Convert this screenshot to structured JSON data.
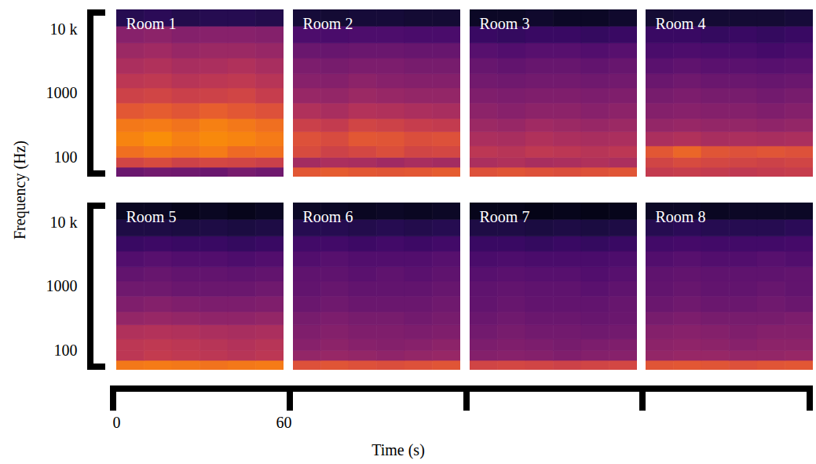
{
  "chart_data": {
    "type": "heatmap",
    "x_label": "Time (s)",
    "y_label": "Frequency (Hz)",
    "xlim": [
      0,
      60
    ],
    "xticks": [
      0,
      60
    ],
    "ylim": [
      50,
      20000
    ],
    "yticks": [
      {
        "value": 10000,
        "label": "10 k"
      },
      1000,
      100
    ],
    "log": "y",
    "color": "inferno",
    "zlim": [
      0,
      1
    ],
    "time_bins": [
      0,
      10,
      20,
      30,
      40,
      50,
      60
    ],
    "freq_bins": [
      50,
      70,
      100,
      150,
      250,
      400,
      700,
      1200,
      2000,
      3500,
      6000,
      11000,
      20000
    ],
    "panels": [
      {
        "title": "Room 1",
        "cells": [
          [
            0.3,
            0.32,
            0.31,
            0.3,
            0.33,
            0.31
          ],
          [
            0.56,
            0.58,
            0.55,
            0.57,
            0.56,
            0.54
          ],
          [
            0.68,
            0.7,
            0.69,
            0.71,
            0.67,
            0.68
          ],
          [
            0.73,
            0.75,
            0.72,
            0.74,
            0.73,
            0.71
          ],
          [
            0.7,
            0.71,
            0.69,
            0.72,
            0.7,
            0.68
          ],
          [
            0.62,
            0.63,
            0.61,
            0.64,
            0.62,
            0.6
          ],
          [
            0.55,
            0.56,
            0.54,
            0.55,
            0.56,
            0.53
          ],
          [
            0.5,
            0.51,
            0.49,
            0.5,
            0.51,
            0.49
          ],
          [
            0.46,
            0.47,
            0.45,
            0.46,
            0.47,
            0.45
          ],
          [
            0.42,
            0.43,
            0.41,
            0.42,
            0.42,
            0.41
          ],
          [
            0.37,
            0.38,
            0.36,
            0.37,
            0.37,
            0.36
          ],
          [
            0.14,
            0.15,
            0.13,
            0.14,
            0.14,
            0.13
          ]
        ]
      },
      {
        "title": "Room 2",
        "cells": [
          [
            0.62,
            0.63,
            0.62,
            0.61,
            0.62,
            0.63
          ],
          [
            0.44,
            0.46,
            0.45,
            0.43,
            0.45,
            0.44
          ],
          [
            0.58,
            0.55,
            0.57,
            0.59,
            0.56,
            0.57
          ],
          [
            0.6,
            0.58,
            0.62,
            0.61,
            0.59,
            0.6
          ],
          [
            0.54,
            0.52,
            0.56,
            0.55,
            0.53,
            0.52
          ],
          [
            0.47,
            0.45,
            0.48,
            0.47,
            0.46,
            0.45
          ],
          [
            0.41,
            0.4,
            0.42,
            0.41,
            0.4,
            0.4
          ],
          [
            0.37,
            0.36,
            0.38,
            0.37,
            0.36,
            0.36
          ],
          [
            0.34,
            0.33,
            0.34,
            0.34,
            0.33,
            0.33
          ],
          [
            0.3,
            0.29,
            0.3,
            0.3,
            0.29,
            0.29
          ],
          [
            0.23,
            0.22,
            0.23,
            0.23,
            0.22,
            0.22
          ],
          [
            0.1,
            0.09,
            0.1,
            0.1,
            0.09,
            0.09
          ]
        ]
      },
      {
        "title": "Room 3",
        "cells": [
          [
            0.6,
            0.61,
            0.6,
            0.59,
            0.6,
            0.61
          ],
          [
            0.46,
            0.47,
            0.45,
            0.46,
            0.47,
            0.46
          ],
          [
            0.5,
            0.49,
            0.51,
            0.5,
            0.49,
            0.5
          ],
          [
            0.46,
            0.45,
            0.47,
            0.46,
            0.45,
            0.46
          ],
          [
            0.42,
            0.41,
            0.43,
            0.42,
            0.41,
            0.42
          ],
          [
            0.38,
            0.37,
            0.38,
            0.38,
            0.37,
            0.38
          ],
          [
            0.35,
            0.34,
            0.35,
            0.35,
            0.34,
            0.35
          ],
          [
            0.32,
            0.31,
            0.32,
            0.32,
            0.31,
            0.32
          ],
          [
            0.29,
            0.28,
            0.29,
            0.29,
            0.28,
            0.29
          ],
          [
            0.25,
            0.24,
            0.25,
            0.25,
            0.24,
            0.25
          ],
          [
            0.18,
            0.17,
            0.18,
            0.18,
            0.17,
            0.18
          ],
          [
            0.07,
            0.07,
            0.08,
            0.07,
            0.07,
            0.08
          ]
        ]
      },
      {
        "title": "Room 4",
        "cells": [
          [
            0.52,
            0.53,
            0.52,
            0.51,
            0.52,
            0.53
          ],
          [
            0.56,
            0.58,
            0.57,
            0.56,
            0.55,
            0.56
          ],
          [
            0.62,
            0.66,
            0.61,
            0.6,
            0.61,
            0.6
          ],
          [
            0.46,
            0.47,
            0.45,
            0.46,
            0.45,
            0.46
          ],
          [
            0.4,
            0.41,
            0.4,
            0.4,
            0.39,
            0.4
          ],
          [
            0.36,
            0.37,
            0.36,
            0.36,
            0.35,
            0.36
          ],
          [
            0.33,
            0.34,
            0.33,
            0.33,
            0.32,
            0.33
          ],
          [
            0.3,
            0.31,
            0.3,
            0.3,
            0.29,
            0.3
          ],
          [
            0.26,
            0.27,
            0.26,
            0.26,
            0.25,
            0.26
          ],
          [
            0.22,
            0.23,
            0.22,
            0.22,
            0.21,
            0.22
          ],
          [
            0.18,
            0.18,
            0.17,
            0.18,
            0.17,
            0.18
          ],
          [
            0.09,
            0.1,
            0.09,
            0.09,
            0.09,
            0.1
          ]
        ]
      },
      {
        "title": "Room 5",
        "cells": [
          [
            0.7,
            0.71,
            0.7,
            0.69,
            0.7,
            0.71
          ],
          [
            0.5,
            0.52,
            0.51,
            0.5,
            0.49,
            0.5
          ],
          [
            0.5,
            0.51,
            0.5,
            0.49,
            0.48,
            0.49
          ],
          [
            0.47,
            0.48,
            0.47,
            0.46,
            0.45,
            0.46
          ],
          [
            0.4,
            0.41,
            0.4,
            0.39,
            0.39,
            0.4
          ],
          [
            0.35,
            0.36,
            0.35,
            0.34,
            0.34,
            0.35
          ],
          [
            0.31,
            0.31,
            0.3,
            0.3,
            0.3,
            0.31
          ],
          [
            0.28,
            0.29,
            0.28,
            0.28,
            0.27,
            0.28
          ],
          [
            0.24,
            0.25,
            0.24,
            0.24,
            0.23,
            0.24
          ],
          [
            0.18,
            0.19,
            0.18,
            0.18,
            0.17,
            0.18
          ],
          [
            0.12,
            0.12,
            0.11,
            0.12,
            0.11,
            0.12
          ],
          [
            0.06,
            0.06,
            0.05,
            0.06,
            0.05,
            0.06
          ]
        ]
      },
      {
        "title": "Room 6",
        "cells": [
          [
            0.6,
            0.61,
            0.6,
            0.59,
            0.6,
            0.61
          ],
          [
            0.4,
            0.41,
            0.4,
            0.39,
            0.4,
            0.41
          ],
          [
            0.37,
            0.38,
            0.37,
            0.36,
            0.37,
            0.38
          ],
          [
            0.35,
            0.36,
            0.35,
            0.35,
            0.34,
            0.35
          ],
          [
            0.33,
            0.34,
            0.33,
            0.33,
            0.32,
            0.33
          ],
          [
            0.3,
            0.31,
            0.3,
            0.3,
            0.3,
            0.31
          ],
          [
            0.28,
            0.29,
            0.28,
            0.28,
            0.28,
            0.29
          ],
          [
            0.27,
            0.27,
            0.26,
            0.27,
            0.26,
            0.27
          ],
          [
            0.24,
            0.25,
            0.24,
            0.24,
            0.24,
            0.25
          ],
          [
            0.2,
            0.2,
            0.19,
            0.2,
            0.19,
            0.2
          ],
          [
            0.14,
            0.14,
            0.13,
            0.14,
            0.13,
            0.14
          ],
          [
            0.07,
            0.07,
            0.06,
            0.07,
            0.06,
            0.07
          ]
        ]
      },
      {
        "title": "Room 7",
        "cells": [
          [
            0.56,
            0.57,
            0.56,
            0.55,
            0.56,
            0.57
          ],
          [
            0.36,
            0.37,
            0.36,
            0.35,
            0.36,
            0.37
          ],
          [
            0.34,
            0.35,
            0.34,
            0.33,
            0.34,
            0.35
          ],
          [
            0.32,
            0.33,
            0.32,
            0.32,
            0.31,
            0.32
          ],
          [
            0.3,
            0.31,
            0.3,
            0.3,
            0.29,
            0.3
          ],
          [
            0.28,
            0.29,
            0.28,
            0.28,
            0.28,
            0.29
          ],
          [
            0.27,
            0.28,
            0.27,
            0.27,
            0.26,
            0.27
          ],
          [
            0.25,
            0.26,
            0.25,
            0.25,
            0.24,
            0.25
          ],
          [
            0.22,
            0.23,
            0.22,
            0.22,
            0.22,
            0.23
          ],
          [
            0.18,
            0.18,
            0.17,
            0.18,
            0.17,
            0.18
          ],
          [
            0.12,
            0.12,
            0.11,
            0.12,
            0.11,
            0.12
          ],
          [
            0.05,
            0.05,
            0.04,
            0.05,
            0.04,
            0.05
          ]
        ]
      },
      {
        "title": "Room 8",
        "cells": [
          [
            0.61,
            0.62,
            0.61,
            0.6,
            0.61,
            0.62
          ],
          [
            0.4,
            0.41,
            0.41,
            0.4,
            0.4,
            0.41
          ],
          [
            0.38,
            0.39,
            0.38,
            0.37,
            0.38,
            0.38
          ],
          [
            0.36,
            0.37,
            0.36,
            0.35,
            0.36,
            0.36
          ],
          [
            0.33,
            0.34,
            0.33,
            0.33,
            0.33,
            0.34
          ],
          [
            0.3,
            0.31,
            0.3,
            0.3,
            0.31,
            0.3
          ],
          [
            0.28,
            0.29,
            0.28,
            0.28,
            0.29,
            0.28
          ],
          [
            0.27,
            0.28,
            0.27,
            0.27,
            0.27,
            0.28
          ],
          [
            0.24,
            0.25,
            0.24,
            0.24,
            0.25,
            0.24
          ],
          [
            0.2,
            0.21,
            0.2,
            0.2,
            0.2,
            0.21
          ],
          [
            0.14,
            0.15,
            0.14,
            0.14,
            0.14,
            0.15
          ],
          [
            0.07,
            0.07,
            0.06,
            0.07,
            0.07,
            0.07
          ]
        ]
      }
    ]
  }
}
